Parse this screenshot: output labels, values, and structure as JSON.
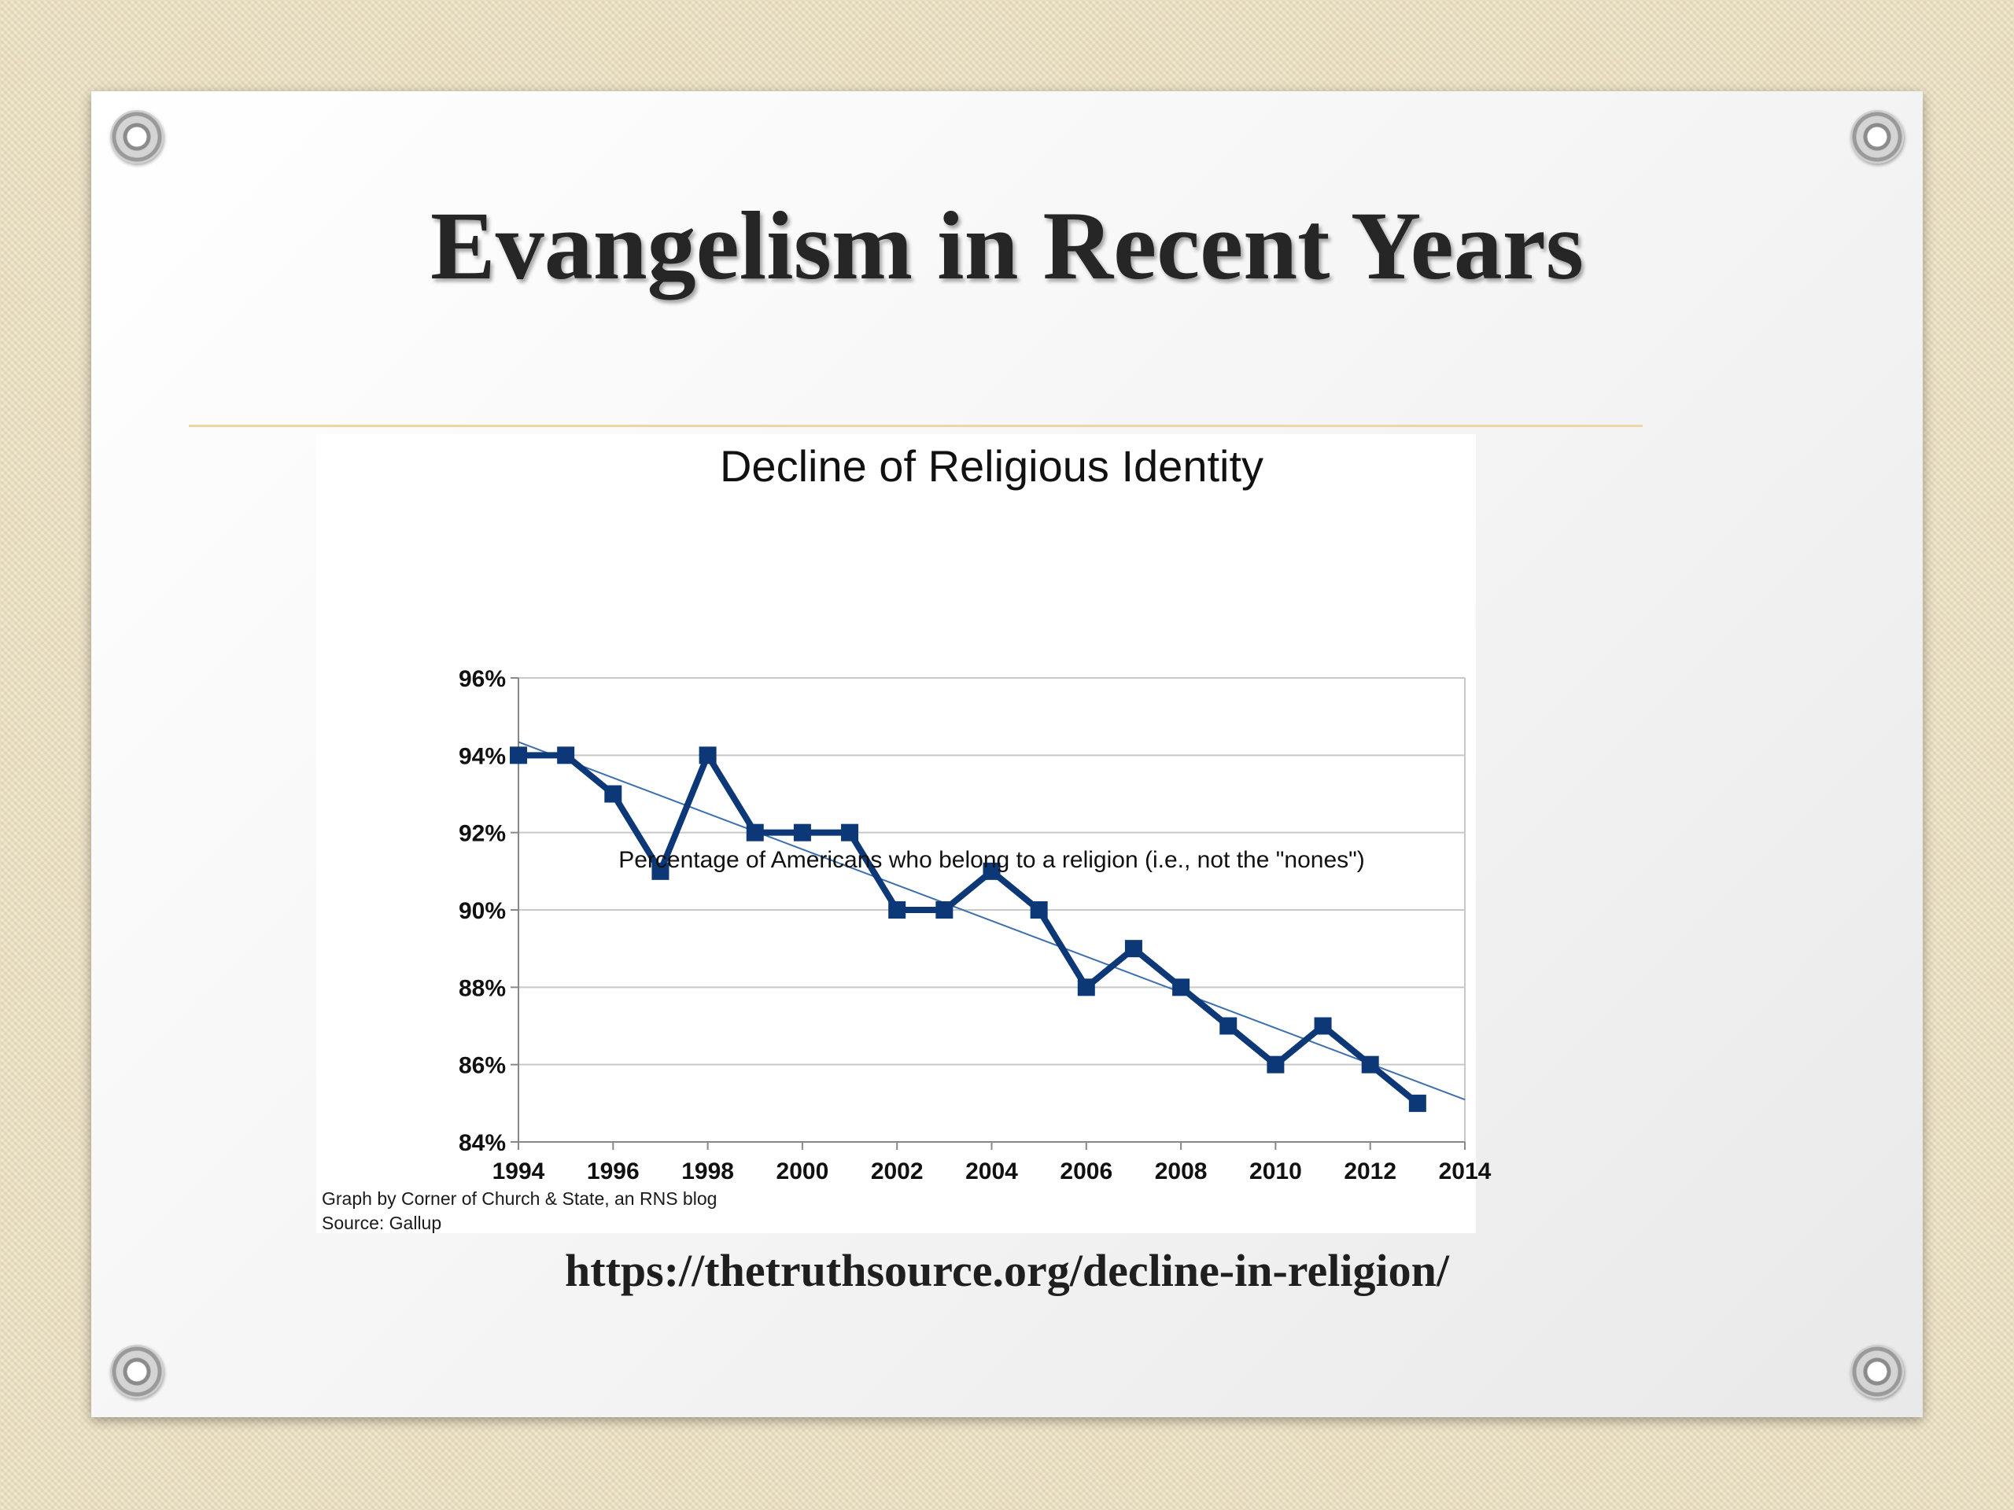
{
  "slide": {
    "title": "Evangelism in Recent Years",
    "url": "https://thetruthsource.org/decline-in-religion/"
  },
  "colors": {
    "series": "#0d3878",
    "trendline": "#3d6fae",
    "grid": "#c8c8c8",
    "rule": "#ecd6a8"
  },
  "chart_data": {
    "type": "line",
    "title": "Decline of Religious Identity",
    "xlabel": "Percentage of Americans who belong to a religion (i.e., not the \"nones\")",
    "ylabel": "",
    "xlim": [
      1994,
      2014
    ],
    "ylim": [
      84,
      96
    ],
    "x_ticks": [
      1994,
      1996,
      1998,
      2000,
      2002,
      2004,
      2006,
      2008,
      2010,
      2012,
      2014
    ],
    "y_ticks": [
      84,
      86,
      88,
      90,
      92,
      94,
      96
    ],
    "y_tick_format": "{v}%",
    "grid": "horizontal",
    "legend": "none",
    "series": [
      {
        "x": [
          1994,
          1995,
          1996,
          1997,
          1998,
          1999,
          2000,
          2001,
          2002,
          2003,
          2004,
          2005,
          2006,
          2007,
          2008,
          2009,
          2010,
          2011,
          2012,
          2013
        ],
        "values": [
          94,
          94,
          93,
          91,
          94,
          92,
          92,
          92,
          90,
          90,
          91,
          90,
          88,
          89,
          88,
          87,
          86,
          87,
          86,
          85
        ],
        "marker": "square"
      }
    ],
    "trendline": {
      "type": "linear",
      "extends_to": 2014
    },
    "credit_lines": [
      "Graph by Corner of Church & State, an RNS blog",
      "Source: Gallup"
    ]
  }
}
